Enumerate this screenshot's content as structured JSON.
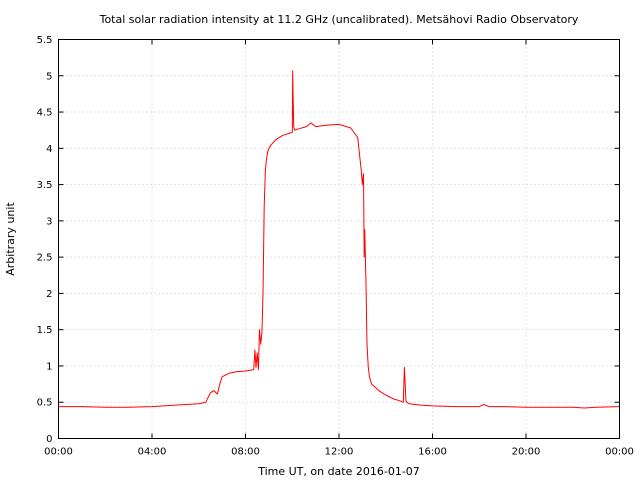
{
  "chart_data": {
    "type": "line",
    "title": "Total solar radiation intensity at 11.2 GHz (uncalibrated). Metsähovi Radio Observatory",
    "xlabel": "Time UT, on date 2016-01-07",
    "ylabel": "Arbitrary unit",
    "xlim": [
      0,
      24
    ],
    "ylim": [
      0,
      5.5
    ],
    "x_unit": "hours UT",
    "x_ticks": [
      {
        "value": 0,
        "label": "00:00"
      },
      {
        "value": 4,
        "label": "04:00"
      },
      {
        "value": 8,
        "label": "08:00"
      },
      {
        "value": 12,
        "label": "12:00"
      },
      {
        "value": 16,
        "label": "16:00"
      },
      {
        "value": 20,
        "label": "20:00"
      },
      {
        "value": 24,
        "label": "00:00"
      }
    ],
    "y_ticks": [
      {
        "value": 0,
        "label": "0"
      },
      {
        "value": 0.5,
        "label": "0.5"
      },
      {
        "value": 1,
        "label": "1"
      },
      {
        "value": 1.5,
        "label": "1.5"
      },
      {
        "value": 2,
        "label": "2"
      },
      {
        "value": 2.5,
        "label": "2.5"
      },
      {
        "value": 3,
        "label": "3"
      },
      {
        "value": 3.5,
        "label": "3.5"
      },
      {
        "value": 4,
        "label": "4"
      },
      {
        "value": 4.5,
        "label": "4.5"
      },
      {
        "value": 5,
        "label": "5"
      },
      {
        "value": 5.5,
        "label": "5.5"
      }
    ],
    "grid": true,
    "series": [
      {
        "color": "#ff0000",
        "x": [
          0,
          1,
          2,
          3,
          4,
          5,
          6,
          6.3,
          6.5,
          6.65,
          6.8,
          6.9,
          7.0,
          7.3,
          7.6,
          8.0,
          8.2,
          8.35,
          8.4,
          8.45,
          8.5,
          8.55,
          8.6,
          8.65,
          8.7,
          8.75,
          8.8,
          8.85,
          8.9,
          8.95,
          9.0,
          9.1,
          9.3,
          9.6,
          10.0,
          10.02,
          10.04,
          10.06,
          10.1,
          10.3,
          10.6,
          10.8,
          11.0,
          11.5,
          12.0,
          12.5,
          12.8,
          12.95,
          13.0,
          13.05,
          13.08,
          13.1,
          13.15,
          13.2,
          13.25,
          13.3,
          13.4,
          13.5,
          13.7,
          14.0,
          14.3,
          14.6,
          14.75,
          14.8,
          14.83,
          14.86,
          14.9,
          15.0,
          15.5,
          16.0,
          17.0,
          18.0,
          18.2,
          18.4,
          19.0,
          20.0,
          21.0,
          22.0,
          22.5,
          23.0,
          24.0
        ],
        "y": [
          0.44,
          0.44,
          0.43,
          0.43,
          0.44,
          0.46,
          0.48,
          0.5,
          0.63,
          0.66,
          0.61,
          0.75,
          0.85,
          0.9,
          0.92,
          0.93,
          0.94,
          0.95,
          1.22,
          0.98,
          1.18,
          0.95,
          1.5,
          1.3,
          1.45,
          2.0,
          3.2,
          3.7,
          3.85,
          3.95,
          4.0,
          4.05,
          4.12,
          4.18,
          4.22,
          5.07,
          4.65,
          4.3,
          4.25,
          4.27,
          4.3,
          4.35,
          4.3,
          4.32,
          4.33,
          4.28,
          4.15,
          3.7,
          3.5,
          3.65,
          2.5,
          2.88,
          2.2,
          1.3,
          1.0,
          0.85,
          0.75,
          0.72,
          0.66,
          0.6,
          0.55,
          0.52,
          0.5,
          0.98,
          0.75,
          0.52,
          0.5,
          0.48,
          0.46,
          0.45,
          0.44,
          0.44,
          0.47,
          0.44,
          0.44,
          0.43,
          0.43,
          0.43,
          0.42,
          0.43,
          0.44
        ]
      }
    ]
  }
}
